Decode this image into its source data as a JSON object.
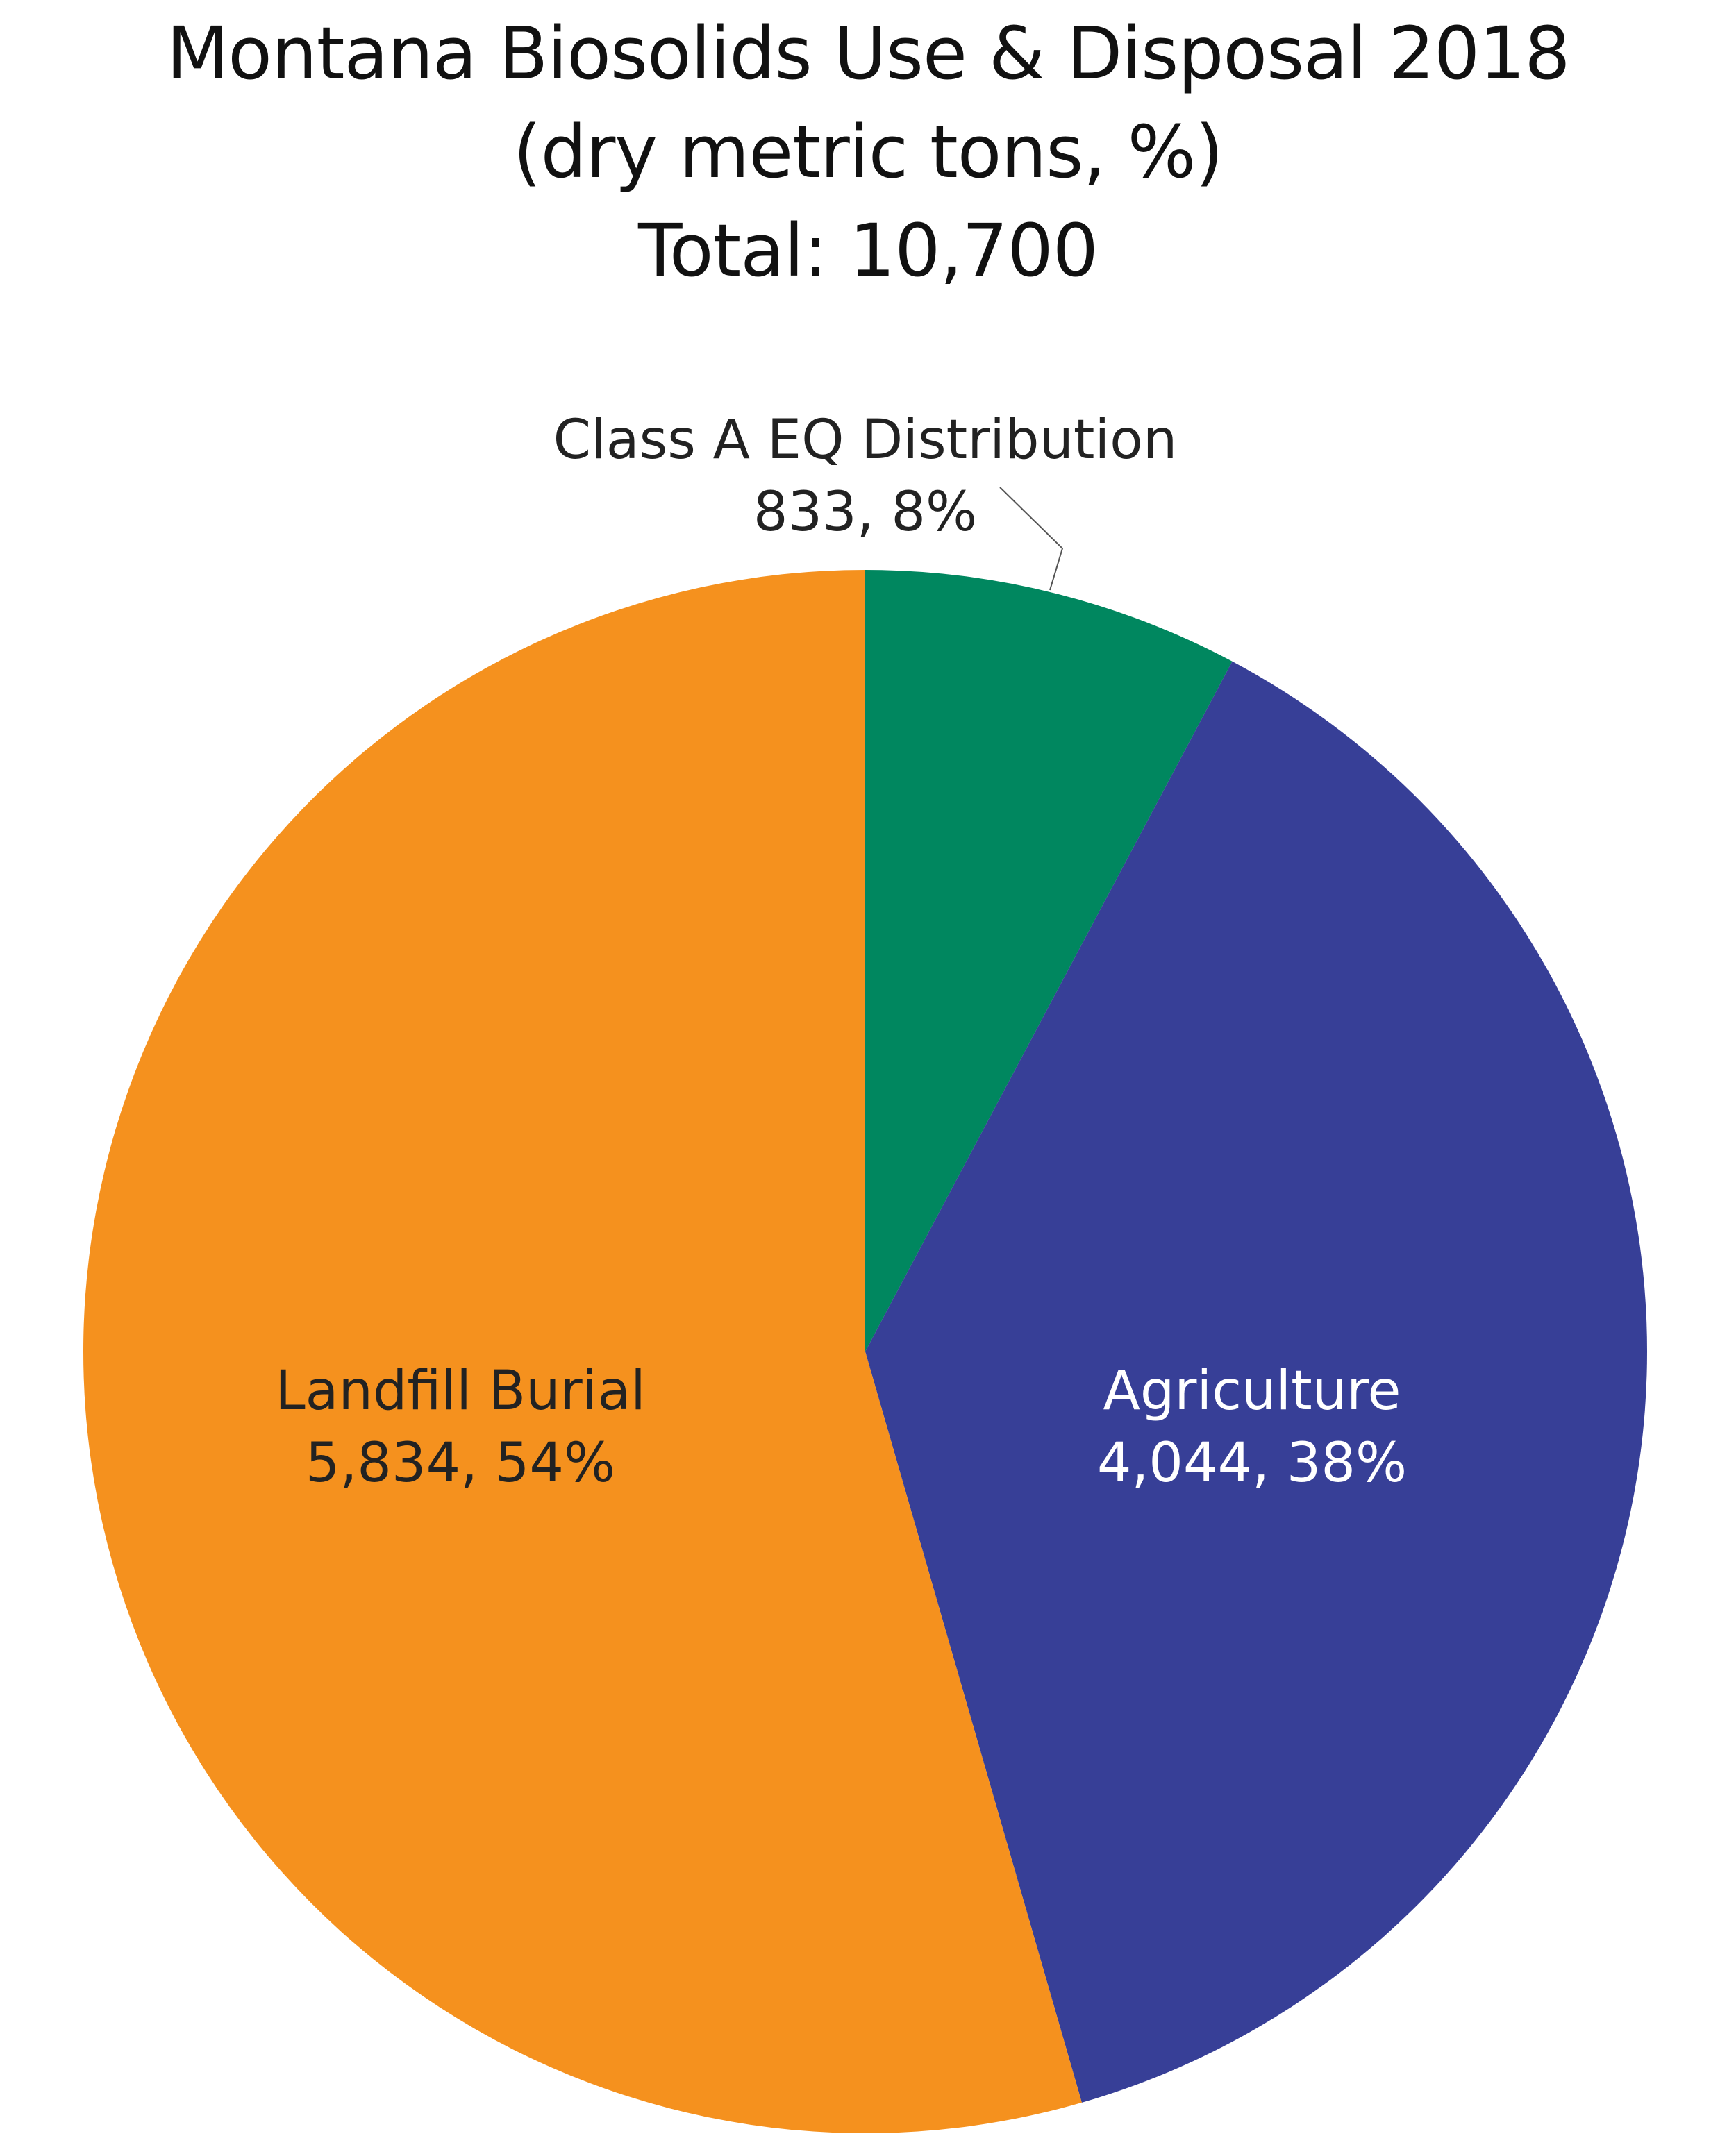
{
  "chart_data": {
    "type": "pie",
    "title": "Montana Biosolids Use & Disposal 2018",
    "subtitle": "(dry metric tons, %)",
    "total_label": "Total: 10,700",
    "slices": [
      {
        "name": "Class A EQ Distribution",
        "value": 833,
        "percent": 8,
        "value_label": "833, 8%",
        "color": "#00875f",
        "label_color": "#222222"
      },
      {
        "name": "Agriculture",
        "value": 4044,
        "percent": 38,
        "value_label": "4,044, 38%",
        "color": "#373f97",
        "label_color": "#ffffff"
      },
      {
        "name": "Landfill Burial",
        "value": 5834,
        "percent": 54,
        "value_label": "5,834, 54%",
        "color": "#f5911e",
        "label_color": "#222222"
      }
    ],
    "grid": false,
    "legend": "none"
  }
}
